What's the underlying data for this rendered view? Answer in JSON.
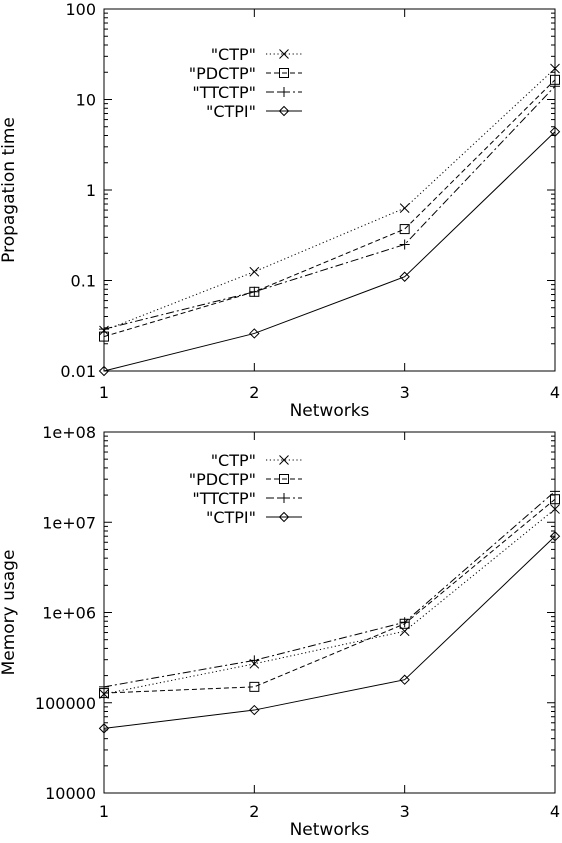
{
  "chart_data": [
    {
      "type": "line",
      "xlabel": "Networks",
      "ylabel": "Propagation time",
      "yscale": "log",
      "xlim": [
        1,
        4
      ],
      "ylim": [
        0.01,
        100
      ],
      "x": [
        1,
        2,
        3,
        4
      ],
      "xticks": [
        "1",
        "2",
        "3",
        "4"
      ],
      "yticks": [
        {
          "value": 0.01,
          "label": "0.01"
        },
        {
          "value": 0.1,
          "label": "0.1"
        },
        {
          "value": 1,
          "label": "1"
        },
        {
          "value": 10,
          "label": "10"
        },
        {
          "value": 100,
          "label": "100"
        }
      ],
      "grid": false,
      "legend_position": "top-left",
      "series": [
        {
          "name": "\"CTP\"",
          "marker": "x",
          "dash": "dotted",
          "values": [
            0.028,
            0.125,
            0.63,
            22
          ]
        },
        {
          "name": "\"PDCTP\"",
          "marker": "square",
          "dash": "dashed",
          "values": [
            0.024,
            0.075,
            0.37,
            16.5
          ]
        },
        {
          "name": "\"TTCTP\"",
          "marker": "plus",
          "dash": "dashdot",
          "values": [
            0.029,
            0.075,
            0.25,
            14
          ]
        },
        {
          "name": "\"CTPI\"",
          "marker": "diamond",
          "dash": "solid",
          "values": [
            0.01,
            0.026,
            0.11,
            4.4
          ]
        }
      ]
    },
    {
      "type": "line",
      "xlabel": "Networks",
      "ylabel": "Memory usage",
      "yscale": "log",
      "xlim": [
        1,
        4
      ],
      "ylim": [
        10000,
        100000000
      ],
      "x": [
        1,
        2,
        3,
        4
      ],
      "xticks": [
        "1",
        "2",
        "3",
        "4"
      ],
      "yticks": [
        {
          "value": 10000,
          "label": "10000"
        },
        {
          "value": 100000,
          "label": "100000"
        },
        {
          "value": 1000000,
          "label": "1e+06"
        },
        {
          "value": 10000000,
          "label": "1e+07"
        },
        {
          "value": 100000000,
          "label": "1e+08"
        }
      ],
      "grid": false,
      "legend_position": "top-left",
      "series": [
        {
          "name": "\"CTP\"",
          "marker": "x",
          "dash": "dotted",
          "values": [
            125000,
            270000,
            620000,
            14000000
          ]
        },
        {
          "name": "\"PDCTP\"",
          "marker": "square",
          "dash": "dashed",
          "values": [
            128000,
            150000,
            750000,
            18000000
          ]
        },
        {
          "name": "\"TTCTP\"",
          "marker": "plus",
          "dash": "dashdot",
          "values": [
            150000,
            295000,
            780000,
            22000000
          ]
        },
        {
          "name": "\"CTPI\"",
          "marker": "diamond",
          "dash": "solid",
          "values": [
            52000,
            83000,
            180000,
            7000000
          ]
        }
      ]
    }
  ]
}
